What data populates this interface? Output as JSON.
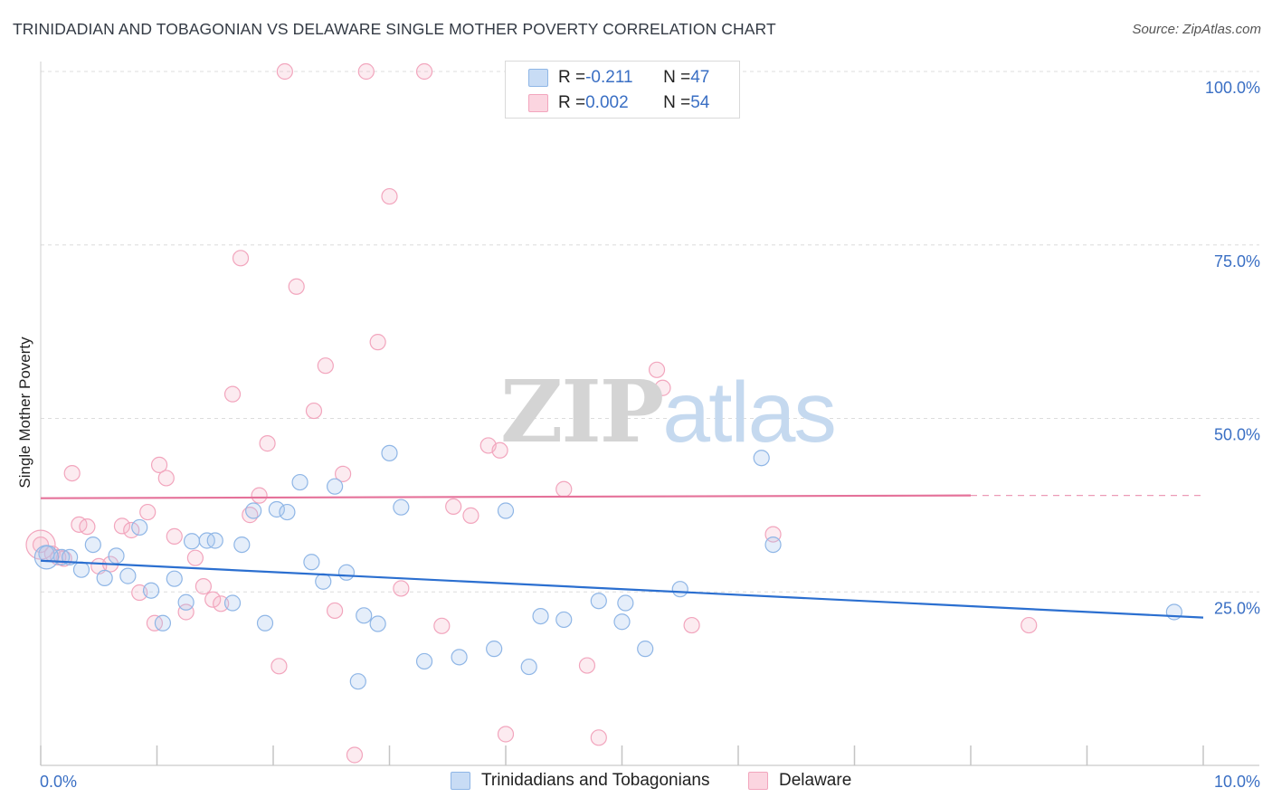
{
  "title": "TRINIDADIAN AND TOBAGONIAN VS DELAWARE SINGLE MOTHER POVERTY CORRELATION CHART",
  "source": "Source: ZipAtlas.com",
  "watermark": {
    "left": "ZIP",
    "right": "atlas"
  },
  "legend": {
    "rows": [
      {
        "r_label": "R = ",
        "r_value": "-0.211",
        "n_label": "N = ",
        "n_value": "47",
        "color": "#a9c8ef"
      },
      {
        "r_label": "R = ",
        "r_value": "0.002",
        "n_label": "N = ",
        "n_value": "54",
        "color": "#f6b8c9"
      }
    ]
  },
  "bottom_legend": [
    {
      "label": "Trinidadians and Tobagonians",
      "color": "#a9c8ef"
    },
    {
      "label": "Delaware",
      "color": "#f6b8c9"
    }
  ],
  "chart_data": {
    "type": "scatter",
    "title": "TRINIDADIAN AND TOBAGONIAN VS DELAWARE SINGLE MOTHER POVERTY CORRELATION CHART",
    "xlabel": "",
    "ylabel": "Single Mother Poverty",
    "xlim": [
      0,
      10
    ],
    "ylim": [
      0,
      100
    ],
    "x_tick_labels": [
      "0.0%",
      "10.0%"
    ],
    "y_tick_labels": [
      "25.0%",
      "50.0%",
      "75.0%",
      "100.0%"
    ],
    "y_ticks": [
      25,
      50,
      75,
      100
    ],
    "grid": true,
    "legend_position": "top-center",
    "colors": {
      "blue_point": "#8fb6e6",
      "blue_line": "#2b6fd0",
      "pink_point": "#f2a5bd",
      "pink_line": "#e5729a",
      "tick_label": "#3a6fc4"
    },
    "series": [
      {
        "name": "Trinidadians and Tobagonians",
        "trend": {
          "x": [
            0.0,
            10.0
          ],
          "y": [
            29.5,
            21.3
          ]
        },
        "points": [
          [
            0.05,
            30.5
          ],
          [
            0.18,
            30.0
          ],
          [
            0.25,
            30.0
          ],
          [
            0.35,
            28.2
          ],
          [
            0.45,
            31.8
          ],
          [
            0.55,
            27.0
          ],
          [
            0.65,
            30.2
          ],
          [
            0.75,
            27.3
          ],
          [
            0.85,
            34.3
          ],
          [
            0.95,
            25.2
          ],
          [
            1.05,
            20.5
          ],
          [
            1.15,
            26.9
          ],
          [
            1.25,
            23.5
          ],
          [
            1.3,
            32.3
          ],
          [
            1.43,
            32.4
          ],
          [
            1.5,
            32.4
          ],
          [
            1.65,
            23.4
          ],
          [
            1.73,
            31.8
          ],
          [
            1.83,
            36.7
          ],
          [
            1.93,
            20.5
          ],
          [
            2.03,
            36.9
          ],
          [
            2.12,
            36.5
          ],
          [
            2.23,
            40.8
          ],
          [
            2.33,
            29.3
          ],
          [
            2.43,
            26.5
          ],
          [
            2.53,
            40.2
          ],
          [
            2.63,
            27.8
          ],
          [
            2.73,
            12.1
          ],
          [
            2.78,
            21.6
          ],
          [
            2.9,
            20.4
          ],
          [
            3.0,
            45.0
          ],
          [
            3.1,
            37.2
          ],
          [
            3.3,
            15.0
          ],
          [
            3.6,
            15.6
          ],
          [
            3.9,
            16.8
          ],
          [
            4.0,
            36.7
          ],
          [
            4.2,
            14.2
          ],
          [
            4.3,
            21.5
          ],
          [
            4.5,
            21.0
          ],
          [
            4.8,
            23.7
          ],
          [
            5.0,
            20.7
          ],
          [
            5.03,
            23.4
          ],
          [
            5.2,
            16.8
          ],
          [
            5.5,
            25.4
          ],
          [
            6.2,
            44.3
          ],
          [
            6.3,
            31.8
          ],
          [
            9.75,
            22.1
          ]
        ]
      },
      {
        "name": "Delaware",
        "trend": {
          "x": [
            0.0,
            8.0
          ],
          "y": [
            38.5,
            38.9
          ]
        },
        "points": [
          [
            0.0,
            31.8
          ],
          [
            0.1,
            30.5
          ],
          [
            0.2,
            29.8
          ],
          [
            0.27,
            42.1
          ],
          [
            0.33,
            34.7
          ],
          [
            0.4,
            34.4
          ],
          [
            0.5,
            28.7
          ],
          [
            0.6,
            29.0
          ],
          [
            0.7,
            34.5
          ],
          [
            0.78,
            33.9
          ],
          [
            0.85,
            24.9
          ],
          [
            0.92,
            36.5
          ],
          [
            0.98,
            20.5
          ],
          [
            1.02,
            43.3
          ],
          [
            1.08,
            41.4
          ],
          [
            1.15,
            33.0
          ],
          [
            1.25,
            22.1
          ],
          [
            1.33,
            29.9
          ],
          [
            1.4,
            25.8
          ],
          [
            1.48,
            23.9
          ],
          [
            1.55,
            23.3
          ],
          [
            1.65,
            53.5
          ],
          [
            1.72,
            73.1
          ],
          [
            1.8,
            36.1
          ],
          [
            1.88,
            38.9
          ],
          [
            1.95,
            46.4
          ],
          [
            2.05,
            14.3
          ],
          [
            2.1,
            100.0
          ],
          [
            2.2,
            69.0
          ],
          [
            2.35,
            51.1
          ],
          [
            2.45,
            57.6
          ],
          [
            2.53,
            22.3
          ],
          [
            2.6,
            42.0
          ],
          [
            2.7,
            1.5
          ],
          [
            2.8,
            100.0
          ],
          [
            2.9,
            61.0
          ],
          [
            3.0,
            82.0
          ],
          [
            3.1,
            25.5
          ],
          [
            3.3,
            100.0
          ],
          [
            3.45,
            20.1
          ],
          [
            3.55,
            37.3
          ],
          [
            3.7,
            36.0
          ],
          [
            3.85,
            46.1
          ],
          [
            3.95,
            45.4
          ],
          [
            4.0,
            4.5
          ],
          [
            4.5,
            39.8
          ],
          [
            4.7,
            14.4
          ],
          [
            4.8,
            4.0
          ],
          [
            5.3,
            57.0
          ],
          [
            5.35,
            54.4
          ],
          [
            5.6,
            20.2
          ],
          [
            6.3,
            33.3
          ],
          [
            8.5,
            20.2
          ],
          [
            0.15,
            30.0
          ]
        ]
      }
    ]
  }
}
